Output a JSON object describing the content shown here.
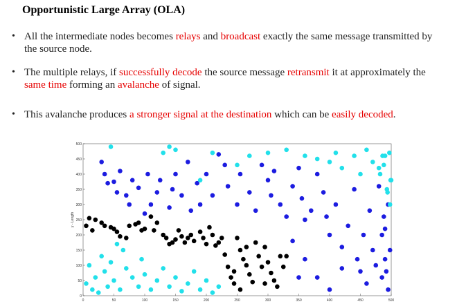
{
  "slide": {
    "title": "Opportunistic Large Array (OLA)",
    "bullets": [
      [
        {
          "text": "All the intermediate nodes becomes "
        },
        {
          "text": "relays",
          "red": true
        },
        {
          "text": " and "
        },
        {
          "text": "broadcast",
          "red": true
        },
        {
          "text": " exactly the same message transmitted by the source node."
        }
      ],
      [
        {
          "text": " The multiple relays, if "
        },
        {
          "text": "successfully decode",
          "red": true
        },
        {
          "text": " the source message "
        },
        {
          "text": "retransmit",
          "red": true
        },
        {
          "text": " it at approximately the "
        },
        {
          "text": "same time",
          "red": true
        },
        {
          "text": " forming an "
        },
        {
          "text": "avalanche",
          "red": true
        },
        {
          "text": " of signal."
        }
      ],
      [
        {
          "text": " This avalanche produces "
        },
        {
          "text": "a stronger signal at the destination",
          "red": true
        },
        {
          "text": " which can be "
        },
        {
          "text": "easily decoded",
          "red": true
        },
        {
          "text": "."
        }
      ]
    ],
    "highlight_color": "#e60000"
  },
  "chart_data": {
    "type": "scatter",
    "ylabel": "y - Length",
    "xlim": [
      0,
      500
    ],
    "xticks": [
      0,
      50,
      100,
      150,
      200,
      250,
      300,
      350,
      400,
      450,
      500
    ],
    "ylim": [
      0,
      500
    ],
    "yticks": [
      0,
      50,
      100,
      150,
      200,
      250,
      300,
      350,
      400,
      450,
      500
    ],
    "series": [
      {
        "color": "#000000",
        "x": [
          5,
          10,
          15,
          20,
          30,
          35,
          45,
          50,
          55,
          60,
          70,
          75,
          85,
          90,
          95,
          100,
          110,
          115,
          120,
          130,
          135,
          140,
          145,
          150,
          155,
          160,
          165,
          170,
          175,
          180,
          190,
          195,
          200,
          205,
          210,
          215,
          220,
          225,
          230,
          235,
          240,
          245,
          250,
          255,
          260,
          265,
          270,
          275,
          280,
          285,
          290,
          295,
          300,
          305,
          310,
          315,
          320,
          325,
          330,
          295,
          265,
          245,
          255
        ],
        "values": [
          230,
          255,
          215,
          250,
          240,
          230,
          225,
          220,
          210,
          195,
          190,
          230,
          235,
          240,
          215,
          220,
          260,
          215,
          240,
          200,
          190,
          170,
          175,
          185,
          215,
          195,
          175,
          190,
          200,
          180,
          210,
          190,
          170,
          225,
          200,
          165,
          175,
          190,
          135,
          95,
          60,
          80,
          190,
          150,
          120,
          100,
          70,
          45,
          175,
          130,
          95,
          40,
          110,
          75,
          50,
          30,
          130,
          95,
          130,
          160,
          160,
          40,
          20
        ]
      },
      {
        "color": "#1c1ce0",
        "x": [
          30,
          35,
          40,
          50,
          55,
          60,
          70,
          75,
          80,
          90,
          100,
          105,
          110,
          120,
          125,
          140,
          145,
          150,
          160,
          170,
          175,
          185,
          190,
          200,
          210,
          220,
          230,
          235,
          250,
          255,
          270,
          280,
          290,
          300,
          305,
          310,
          320,
          330,
          340,
          350,
          355,
          360,
          370,
          380,
          390,
          395,
          400,
          410,
          420,
          430,
          440,
          445,
          450,
          455,
          460,
          465,
          470,
          475,
          480,
          485,
          490,
          495,
          495,
          490,
          488,
          492,
          485,
          498,
          340,
          360,
          380,
          400,
          420,
          350
        ],
        "values": [
          440,
          400,
          370,
          375,
          340,
          410,
          330,
          300,
          380,
          355,
          270,
          400,
          300,
          340,
          380,
          290,
          350,
          400,
          330,
          440,
          280,
          370,
          300,
          400,
          330,
          465,
          430,
          360,
          300,
          400,
          340,
          280,
          430,
          380,
          330,
          410,
          300,
          260,
          360,
          420,
          320,
          250,
          280,
          400,
          340,
          260,
          200,
          300,
          160,
          230,
          350,
          120,
          80,
          200,
          40,
          280,
          150,
          100,
          360,
          60,
          220,
          20,
          300,
          120,
          260,
          80,
          200,
          150,
          180,
          120,
          60,
          20,
          90,
          60
        ]
      },
      {
        "color": "#22e0ea",
        "x": [
          5,
          10,
          15,
          20,
          25,
          30,
          35,
          40,
          45,
          50,
          55,
          60,
          65,
          70,
          80,
          90,
          95,
          100,
          110,
          120,
          130,
          140,
          150,
          160,
          170,
          180,
          190,
          200,
          210,
          220,
          45,
          130,
          140,
          150,
          190,
          210,
          250,
          270,
          300,
          330,
          360,
          380,
          400,
          410,
          420,
          440,
          450,
          460,
          470,
          480,
          490,
          500,
          497,
          493,
          488,
          482,
          498,
          494,
          499,
          486
        ],
        "values": [
          40,
          100,
          20,
          60,
          10,
          130,
          80,
          30,
          110,
          50,
          170,
          20,
          150,
          90,
          60,
          30,
          120,
          70,
          20,
          50,
          90,
          30,
          60,
          15,
          40,
          80,
          20,
          50,
          10,
          30,
          490,
          470,
          490,
          480,
          380,
          470,
          430,
          460,
          470,
          480,
          460,
          450,
          440,
          470,
          420,
          460,
          400,
          480,
          440,
          420,
          460,
          380,
          470,
          350,
          430,
          400,
          300,
          340,
          380,
          460
        ]
      }
    ]
  }
}
